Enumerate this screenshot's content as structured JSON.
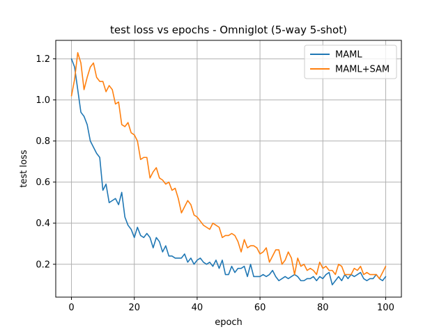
{
  "chart_data": {
    "type": "line",
    "title": "test loss vs epochs - Omniglot (5-way 5-shot)",
    "xlabel": "epoch",
    "ylabel": "test loss",
    "xlim": [
      -5,
      105
    ],
    "ylim": [
      0.04,
      1.29
    ],
    "xticks": [
      0,
      20,
      40,
      60,
      80,
      100
    ],
    "yticks": [
      0.2,
      0.4,
      0.6,
      0.8,
      1.0,
      1.2
    ],
    "xtick_labels": [
      "0",
      "20",
      "40",
      "60",
      "80",
      "100"
    ],
    "ytick_labels": [
      "0.2",
      "0.4",
      "0.6",
      "0.8",
      "1.0",
      "1.2"
    ],
    "grid": true,
    "legend_position": "top-right",
    "x": [
      0,
      1,
      2,
      3,
      4,
      5,
      6,
      7,
      8,
      9,
      10,
      11,
      12,
      13,
      14,
      15,
      16,
      17,
      18,
      19,
      20,
      21,
      22,
      23,
      24,
      25,
      26,
      27,
      28,
      29,
      30,
      31,
      32,
      33,
      34,
      35,
      36,
      37,
      38,
      39,
      40,
      41,
      42,
      43,
      44,
      45,
      46,
      47,
      48,
      49,
      50,
      51,
      52,
      53,
      54,
      55,
      56,
      57,
      58,
      59,
      60,
      61,
      62,
      63,
      64,
      65,
      66,
      67,
      68,
      69,
      70,
      71,
      72,
      73,
      74,
      75,
      76,
      77,
      78,
      79,
      80,
      81,
      82,
      83,
      84,
      85,
      86,
      87,
      88,
      89,
      90,
      91,
      92,
      93,
      94,
      95,
      96,
      97,
      98,
      99,
      100
    ],
    "series": [
      {
        "name": "MAML",
        "color": "#1f77b4",
        "values": [
          1.2,
          1.16,
          1.05,
          0.94,
          0.92,
          0.88,
          0.8,
          0.77,
          0.74,
          0.72,
          0.56,
          0.59,
          0.5,
          0.51,
          0.52,
          0.49,
          0.55,
          0.43,
          0.39,
          0.37,
          0.33,
          0.38,
          0.34,
          0.33,
          0.35,
          0.33,
          0.28,
          0.33,
          0.31,
          0.26,
          0.29,
          0.24,
          0.24,
          0.23,
          0.23,
          0.23,
          0.25,
          0.21,
          0.23,
          0.2,
          0.22,
          0.23,
          0.21,
          0.2,
          0.21,
          0.19,
          0.22,
          0.18,
          0.22,
          0.15,
          0.15,
          0.19,
          0.16,
          0.18,
          0.18,
          0.19,
          0.14,
          0.2,
          0.14,
          0.14,
          0.14,
          0.15,
          0.14,
          0.15,
          0.17,
          0.14,
          0.12,
          0.13,
          0.14,
          0.13,
          0.14,
          0.15,
          0.14,
          0.12,
          0.12,
          0.13,
          0.13,
          0.14,
          0.12,
          0.14,
          0.13,
          0.15,
          0.16,
          0.1,
          0.12,
          0.14,
          0.12,
          0.15,
          0.13,
          0.15,
          0.14,
          0.15,
          0.16,
          0.13,
          0.12,
          0.13,
          0.13,
          0.15,
          0.13,
          0.12,
          0.14
        ]
      },
      {
        "name": "MAML+SAM",
        "color": "#ff7f0e",
        "values": [
          1.02,
          1.1,
          1.23,
          1.18,
          1.05,
          1.11,
          1.16,
          1.18,
          1.11,
          1.09,
          1.09,
          1.04,
          1.07,
          1.05,
          0.98,
          0.99,
          0.88,
          0.87,
          0.89,
          0.84,
          0.83,
          0.8,
          0.71,
          0.72,
          0.72,
          0.62,
          0.65,
          0.67,
          0.62,
          0.61,
          0.59,
          0.6,
          0.56,
          0.57,
          0.52,
          0.45,
          0.48,
          0.51,
          0.49,
          0.44,
          0.43,
          0.41,
          0.39,
          0.38,
          0.37,
          0.4,
          0.39,
          0.38,
          0.33,
          0.34,
          0.34,
          0.35,
          0.34,
          0.31,
          0.26,
          0.32,
          0.28,
          0.29,
          0.29,
          0.28,
          0.25,
          0.26,
          0.28,
          0.21,
          0.24,
          0.27,
          0.27,
          0.2,
          0.22,
          0.26,
          0.23,
          0.15,
          0.23,
          0.19,
          0.2,
          0.17,
          0.18,
          0.17,
          0.15,
          0.21,
          0.18,
          0.19,
          0.17,
          0.17,
          0.15,
          0.2,
          0.19,
          0.15,
          0.15,
          0.15,
          0.18,
          0.17,
          0.19,
          0.15,
          0.16,
          0.15,
          0.15,
          0.15,
          0.13,
          0.16,
          0.19
        ]
      }
    ]
  }
}
